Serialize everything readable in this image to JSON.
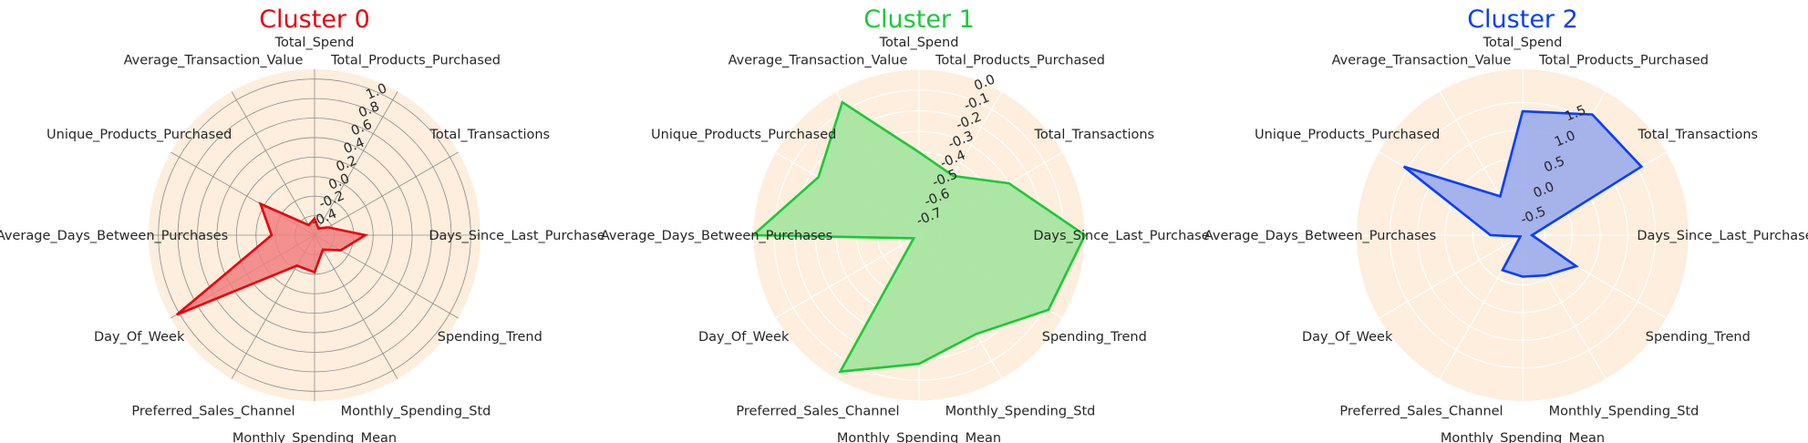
{
  "chart_data": [
    {
      "type": "radar",
      "title": "Cluster 0",
      "color": "#e8000b",
      "fill_color": "#f08080",
      "background": "#fdeedd",
      "grid_color": "#8c8c8c",
      "categories": [
        "Total_Spend",
        "Total_Products_Purchased",
        "Total_Transactions",
        "Days_Since_Last_Purchase",
        "Spending_Trend",
        "Monthly_Spending_Std",
        "Monthly_Spending_Mean",
        "Preferred_Sales_Channel",
        "Day_Of_Week",
        "Average_Days_Between_Purchases",
        "Unique_Products_Purchased",
        "Average_Transaction_Value"
      ],
      "series": [
        {
          "values": [
            -0.43,
            -0.52,
            -0.44,
            -0.08,
            -0.29,
            -0.43,
            -0.22,
            -0.24,
            1.03,
            -0.16,
            0.04,
            -0.48
          ]
        }
      ],
      "rlim": [
        -0.6,
        1.1
      ],
      "rticks": [
        -0.4,
        -0.2,
        0.0,
        0.2,
        0.4,
        0.6,
        0.8,
        1.0
      ],
      "rtick_labels": [
        "-0.4",
        "-0.2",
        "0.0",
        "0.2",
        "0.4",
        "0.6",
        "0.8",
        "1.0"
      ],
      "grid": true
    },
    {
      "type": "radar",
      "title": "Cluster 1",
      "color": "#1ac938",
      "fill_color": "#9ee39a",
      "background": "#fdeedd",
      "grid_color": "#ffffff",
      "categories": [
        "Total_Spend",
        "Total_Products_Purchased",
        "Total_Transactions",
        "Days_Since_Last_Purchase",
        "Spending_Trend",
        "Monthly_Spending_Std",
        "Monthly_Spending_Mean",
        "Preferred_Sales_Channel",
        "Day_Of_Week",
        "Average_Days_Between_Purchases",
        "Unique_Products_Purchased",
        "Average_Transaction_Value"
      ],
      "series": [
        {
          "values": [
            -0.4,
            -0.47,
            -0.3,
            0.0,
            -0.08,
            -0.25,
            -0.18,
            -0.04,
            -0.77,
            0.0,
            -0.24,
            -0.06
          ]
        }
      ],
      "rlim": [
        -0.8,
        0.0
      ],
      "rticks": [
        -0.7,
        -0.6,
        -0.5,
        -0.4,
        -0.3,
        -0.2,
        -0.1,
        0.0
      ],
      "rtick_labels": [
        "-0.7",
        "-0.6",
        "-0.5",
        "-0.4",
        "-0.3",
        "-0.2",
        "-0.1",
        "0.0"
      ],
      "grid": true
    },
    {
      "type": "radar",
      "title": "Cluster 2",
      "color": "#023eff",
      "fill_color": "#97a7ec",
      "background": "#fdeedd",
      "grid_color": "#ffffff",
      "categories": [
        "Total_Spend",
        "Total_Products_Purchased",
        "Total_Transactions",
        "Days_Since_Last_Purchase",
        "Spending_Trend",
        "Monthly_Spending_Std",
        "Monthly_Spending_Mean",
        "Preferred_Sales_Channel",
        "Day_Of_Week",
        "Average_Days_Between_Purchases",
        "Unique_Products_Purchased",
        "Average_Transaction_Value"
      ],
      "series": [
        {
          "values": [
            1.34,
            1.62,
            1.58,
            -0.73,
            0.22,
            -0.06,
            -0.15,
            -0.17,
            -0.85,
            -0.32,
            1.58,
            -0.09
          ]
        }
      ],
      "rlim": [
        -0.9,
        2.1
      ],
      "rticks": [
        -0.5,
        0.0,
        0.5,
        1.0,
        1.5
      ],
      "rtick_labels": [
        "-0.5",
        "0.0",
        "0.5",
        "1.0",
        "1.5"
      ],
      "grid": true
    }
  ]
}
